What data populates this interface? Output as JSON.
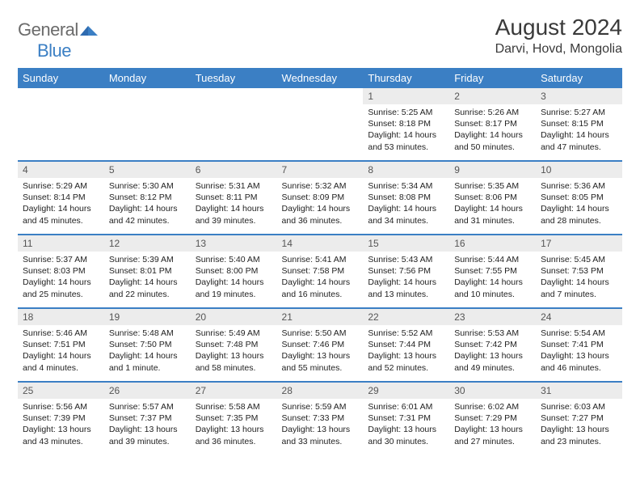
{
  "logo": {
    "word1": "General",
    "word2": "Blue"
  },
  "title": "August 2024",
  "location": "Darvi, Hovd, Mongolia",
  "colors": {
    "header_bg": "#3b7fc4",
    "header_text": "#ffffff",
    "daynum_bg": "#ececec",
    "rule": "#3b7fc4",
    "logo_gray": "#6b6b6b",
    "logo_blue": "#3b7fc4"
  },
  "typography": {
    "title_fontsize": 28,
    "location_fontsize": 16,
    "weekday_fontsize": 13,
    "body_fontsize": 10.5
  },
  "weekdays": [
    "Sunday",
    "Monday",
    "Tuesday",
    "Wednesday",
    "Thursday",
    "Friday",
    "Saturday"
  ],
  "first_weekday_index": 4,
  "days": [
    {
      "n": 1,
      "sunrise": "5:25 AM",
      "sunset": "8:18 PM",
      "daylight": "14 hours and 53 minutes."
    },
    {
      "n": 2,
      "sunrise": "5:26 AM",
      "sunset": "8:17 PM",
      "daylight": "14 hours and 50 minutes."
    },
    {
      "n": 3,
      "sunrise": "5:27 AM",
      "sunset": "8:15 PM",
      "daylight": "14 hours and 47 minutes."
    },
    {
      "n": 4,
      "sunrise": "5:29 AM",
      "sunset": "8:14 PM",
      "daylight": "14 hours and 45 minutes."
    },
    {
      "n": 5,
      "sunrise": "5:30 AM",
      "sunset": "8:12 PM",
      "daylight": "14 hours and 42 minutes."
    },
    {
      "n": 6,
      "sunrise": "5:31 AM",
      "sunset": "8:11 PM",
      "daylight": "14 hours and 39 minutes."
    },
    {
      "n": 7,
      "sunrise": "5:32 AM",
      "sunset": "8:09 PM",
      "daylight": "14 hours and 36 minutes."
    },
    {
      "n": 8,
      "sunrise": "5:34 AM",
      "sunset": "8:08 PM",
      "daylight": "14 hours and 34 minutes."
    },
    {
      "n": 9,
      "sunrise": "5:35 AM",
      "sunset": "8:06 PM",
      "daylight": "14 hours and 31 minutes."
    },
    {
      "n": 10,
      "sunrise": "5:36 AM",
      "sunset": "8:05 PM",
      "daylight": "14 hours and 28 minutes."
    },
    {
      "n": 11,
      "sunrise": "5:37 AM",
      "sunset": "8:03 PM",
      "daylight": "14 hours and 25 minutes."
    },
    {
      "n": 12,
      "sunrise": "5:39 AM",
      "sunset": "8:01 PM",
      "daylight": "14 hours and 22 minutes."
    },
    {
      "n": 13,
      "sunrise": "5:40 AM",
      "sunset": "8:00 PM",
      "daylight": "14 hours and 19 minutes."
    },
    {
      "n": 14,
      "sunrise": "5:41 AM",
      "sunset": "7:58 PM",
      "daylight": "14 hours and 16 minutes."
    },
    {
      "n": 15,
      "sunrise": "5:43 AM",
      "sunset": "7:56 PM",
      "daylight": "14 hours and 13 minutes."
    },
    {
      "n": 16,
      "sunrise": "5:44 AM",
      "sunset": "7:55 PM",
      "daylight": "14 hours and 10 minutes."
    },
    {
      "n": 17,
      "sunrise": "5:45 AM",
      "sunset": "7:53 PM",
      "daylight": "14 hours and 7 minutes."
    },
    {
      "n": 18,
      "sunrise": "5:46 AM",
      "sunset": "7:51 PM",
      "daylight": "14 hours and 4 minutes."
    },
    {
      "n": 19,
      "sunrise": "5:48 AM",
      "sunset": "7:50 PM",
      "daylight": "14 hours and 1 minute."
    },
    {
      "n": 20,
      "sunrise": "5:49 AM",
      "sunset": "7:48 PM",
      "daylight": "13 hours and 58 minutes."
    },
    {
      "n": 21,
      "sunrise": "5:50 AM",
      "sunset": "7:46 PM",
      "daylight": "13 hours and 55 minutes."
    },
    {
      "n": 22,
      "sunrise": "5:52 AM",
      "sunset": "7:44 PM",
      "daylight": "13 hours and 52 minutes."
    },
    {
      "n": 23,
      "sunrise": "5:53 AM",
      "sunset": "7:42 PM",
      "daylight": "13 hours and 49 minutes."
    },
    {
      "n": 24,
      "sunrise": "5:54 AM",
      "sunset": "7:41 PM",
      "daylight": "13 hours and 46 minutes."
    },
    {
      "n": 25,
      "sunrise": "5:56 AM",
      "sunset": "7:39 PM",
      "daylight": "13 hours and 43 minutes."
    },
    {
      "n": 26,
      "sunrise": "5:57 AM",
      "sunset": "7:37 PM",
      "daylight": "13 hours and 39 minutes."
    },
    {
      "n": 27,
      "sunrise": "5:58 AM",
      "sunset": "7:35 PM",
      "daylight": "13 hours and 36 minutes."
    },
    {
      "n": 28,
      "sunrise": "5:59 AM",
      "sunset": "7:33 PM",
      "daylight": "13 hours and 33 minutes."
    },
    {
      "n": 29,
      "sunrise": "6:01 AM",
      "sunset": "7:31 PM",
      "daylight": "13 hours and 30 minutes."
    },
    {
      "n": 30,
      "sunrise": "6:02 AM",
      "sunset": "7:29 PM",
      "daylight": "13 hours and 27 minutes."
    },
    {
      "n": 31,
      "sunrise": "6:03 AM",
      "sunset": "7:27 PM",
      "daylight": "13 hours and 23 minutes."
    }
  ],
  "labels": {
    "sunrise": "Sunrise: ",
    "sunset": "Sunset: ",
    "daylight": "Daylight: "
  }
}
